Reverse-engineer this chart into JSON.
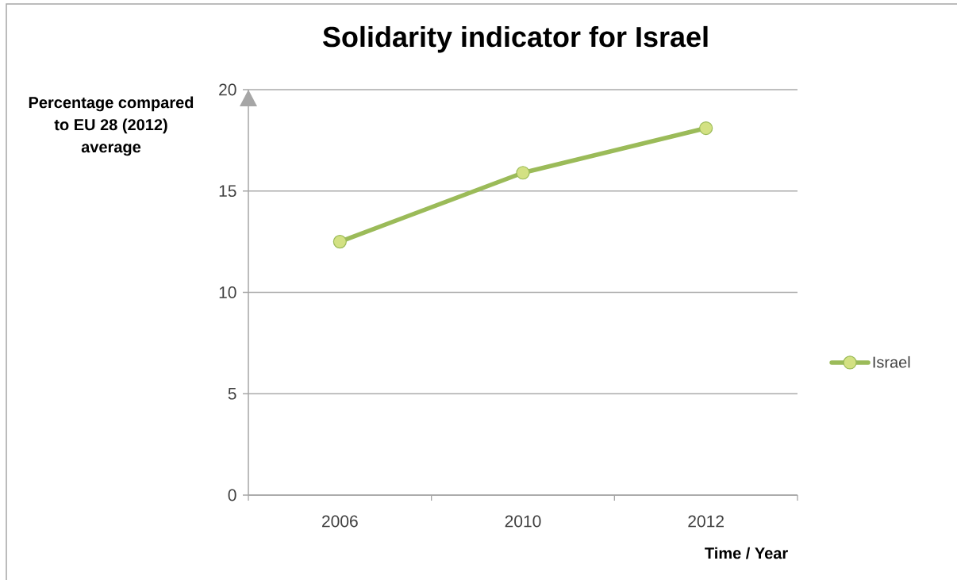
{
  "chart_data": {
    "type": "line",
    "title": "Solidarity indicator for Israel",
    "xlabel": "Time / Year",
    "ylabel": "Percentage compared to EU 28 (2012) average",
    "categories": [
      "2006",
      "2010",
      "2012"
    ],
    "series": [
      {
        "name": "Israel",
        "color": "#9bbb59",
        "values": [
          12.5,
          15.9,
          18.1
        ]
      }
    ],
    "ylim": [
      0,
      20
    ],
    "yticks": [
      0,
      5,
      10,
      15,
      20
    ],
    "grid": "y",
    "legend": "right",
    "marker": "circle",
    "line_style": "solid"
  }
}
